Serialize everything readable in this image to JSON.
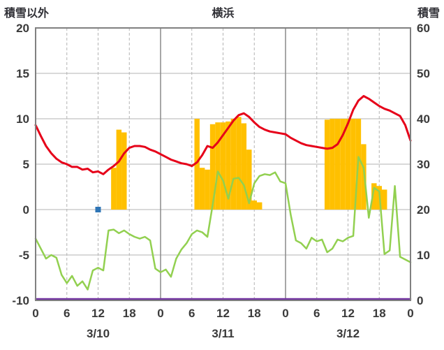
{
  "header": {
    "left_axis_title": "積雪以外",
    "chart_title": "横浜",
    "right_axis_title": "積雪"
  },
  "chart_data": {
    "type": "line",
    "title": "横浜",
    "grid": true,
    "legend": "none",
    "x_axis": {
      "unit": "hour",
      "min": 0,
      "max": 72,
      "tick_interval": 6,
      "tick_labels": [
        "0",
        "6",
        "12",
        "18",
        "0",
        "6",
        "12",
        "18",
        "0",
        "6",
        "12",
        "18",
        "0"
      ],
      "day_labels": [
        {
          "label": "3/10",
          "hour": 12
        },
        {
          "label": "3/11",
          "hour": 36
        },
        {
          "label": "3/12",
          "hour": 60
        }
      ]
    },
    "left_axis": {
      "title": "積雪以外",
      "min": -10,
      "max": 20,
      "ticks": [
        20,
        15,
        10,
        5,
        0,
        -5,
        -10
      ]
    },
    "right_axis": {
      "title": "積雪",
      "min": 0,
      "max": 60,
      "ticks": [
        60,
        50,
        40,
        30,
        20,
        10,
        0
      ]
    },
    "colors": {
      "red": "#e60019",
      "green": "#92d050",
      "orange": "#ffc000",
      "purple": "#7030a0",
      "blue": "#2e75b6",
      "grid": "#b3b3b3",
      "day_grid": "#8a8a8a",
      "border": "#808080",
      "text": "#3a3a3a",
      "background": "#ffffff"
    },
    "series": [
      {
        "name": "orange-bars",
        "type": "bar",
        "axis": "left",
        "color_key": "orange",
        "x": [
          15,
          16,
          17,
          31,
          32,
          33,
          34,
          35,
          36,
          37,
          38,
          39,
          40,
          41,
          42,
          43,
          56,
          57,
          58,
          59,
          60,
          61,
          62,
          63,
          65,
          66,
          67
        ],
        "values": [
          4.6,
          8.8,
          8.5,
          10.0,
          4.6,
          4.4,
          9.4,
          9.6,
          9.6,
          9.7,
          10.0,
          10.2,
          9.5,
          6.6,
          1.0,
          0.8,
          9.9,
          10.0,
          10.0,
          10.0,
          10.0,
          10.0,
          10.0,
          7.2,
          2.9,
          2.6,
          2.2
        ]
      },
      {
        "name": "purple-line",
        "type": "line",
        "axis": "right",
        "color_key": "purple",
        "width": 2.5,
        "x": [
          0,
          72
        ],
        "values": [
          0,
          0
        ]
      },
      {
        "name": "green-line",
        "type": "line",
        "axis": "left",
        "color_key": "green",
        "width": 2.5,
        "values": [
          -3.2,
          -4.3,
          -5.4,
          -5.0,
          -5.3,
          -7.2,
          -8.1,
          -7.3,
          -8.4,
          -7.9,
          -8.8,
          -6.7,
          -6.4,
          -6.7,
          -2.3,
          -2.2,
          -2.6,
          -2.3,
          -2.7,
          -3.0,
          -3.2,
          -3.0,
          -3.4,
          -6.5,
          -6.9,
          -6.6,
          -7.4,
          -5.4,
          -4.4,
          -3.7,
          -2.7,
          -2.3,
          -2.5,
          -3.0,
          0.5,
          4.2,
          3.2,
          1.2,
          3.4,
          3.5,
          2.7,
          0.7,
          2.9,
          3.7,
          3.9,
          3.8,
          4.1,
          3.1,
          2.9,
          -0.6,
          -3.4,
          -3.7,
          -4.3,
          -3.1,
          -3.5,
          -3.3,
          -4.7,
          -4.3,
          -3.3,
          -3.5,
          -3.1,
          -2.9,
          5.8,
          4.6,
          -0.9,
          2.4,
          2.0,
          -4.9,
          -4.5,
          2.6,
          -5.2,
          -5.5,
          -5.8
        ]
      },
      {
        "name": "red-line",
        "type": "line",
        "axis": "left",
        "color_key": "red",
        "width": 3,
        "values": [
          9.3,
          8.1,
          7.0,
          6.2,
          5.6,
          5.2,
          5.0,
          4.7,
          4.7,
          4.4,
          4.5,
          4.1,
          4.2,
          3.9,
          4.4,
          4.8,
          5.3,
          6.2,
          6.8,
          7.0,
          7.0,
          6.9,
          6.6,
          6.4,
          6.1,
          5.8,
          5.5,
          5.3,
          5.1,
          5.0,
          4.8,
          5.2,
          6.0,
          7.0,
          6.8,
          7.4,
          8.2,
          9.0,
          9.8,
          10.4,
          10.6,
          10.2,
          9.6,
          9.1,
          8.8,
          8.6,
          8.5,
          8.4,
          8.3,
          7.9,
          7.6,
          7.3,
          7.1,
          7.0,
          6.9,
          6.8,
          6.7,
          6.8,
          7.2,
          8.2,
          9.5,
          11.0,
          12.0,
          12.5,
          12.2,
          11.8,
          11.4,
          11.1,
          10.9,
          10.6,
          10.3,
          9.3,
          7.6
        ]
      },
      {
        "name": "blue-point",
        "type": "point",
        "axis": "left",
        "color_key": "blue",
        "x": [
          12
        ],
        "values": [
          0
        ]
      }
    ]
  }
}
